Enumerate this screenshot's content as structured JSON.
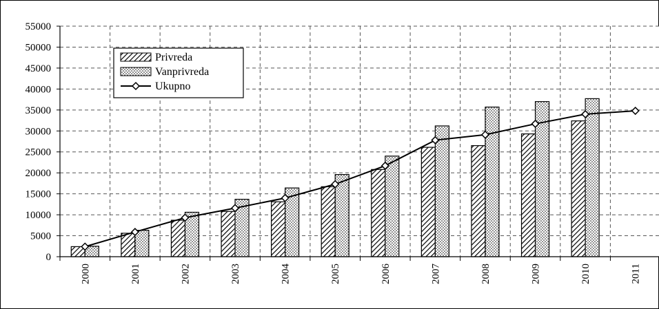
{
  "chart_data": {
    "type": "bar",
    "title": "",
    "xlabel": "",
    "ylabel": "",
    "categories": [
      "2000",
      "2001",
      "2002",
      "2003",
      "2004",
      "2005",
      "2006",
      "2007",
      "2008",
      "2009",
      "2010",
      "2011"
    ],
    "series": [
      {
        "name": "Privreda",
        "type": "bar",
        "pattern": "diagonal-hatch",
        "values": [
          2400,
          5600,
          8700,
          10800,
          13100,
          16700,
          20800,
          26100,
          26500,
          29300,
          32400,
          null
        ]
      },
      {
        "name": "Vanprivreda",
        "type": "bar",
        "pattern": "dotted",
        "values": [
          2500,
          6300,
          10600,
          13700,
          16400,
          19600,
          24000,
          31200,
          35700,
          37000,
          37700,
          null
        ]
      },
      {
        "name": "Ukupno",
        "type": "line",
        "marker": "diamond",
        "values": [
          2400,
          5900,
          9300,
          11600,
          14000,
          17300,
          21700,
          27800,
          29100,
          31700,
          34000,
          34800
        ]
      }
    ],
    "yticks": [
      0,
      5000,
      10000,
      15000,
      20000,
      25000,
      30000,
      35000,
      40000,
      45000,
      50000,
      55000
    ],
    "ylim": [
      0,
      55000
    ],
    "grid": true,
    "gridStyle": "dashed",
    "legend_position": "top-left",
    "colors": {
      "line": "#000000",
      "bar_fill": "#ffffff",
      "pattern": "#000000"
    }
  }
}
